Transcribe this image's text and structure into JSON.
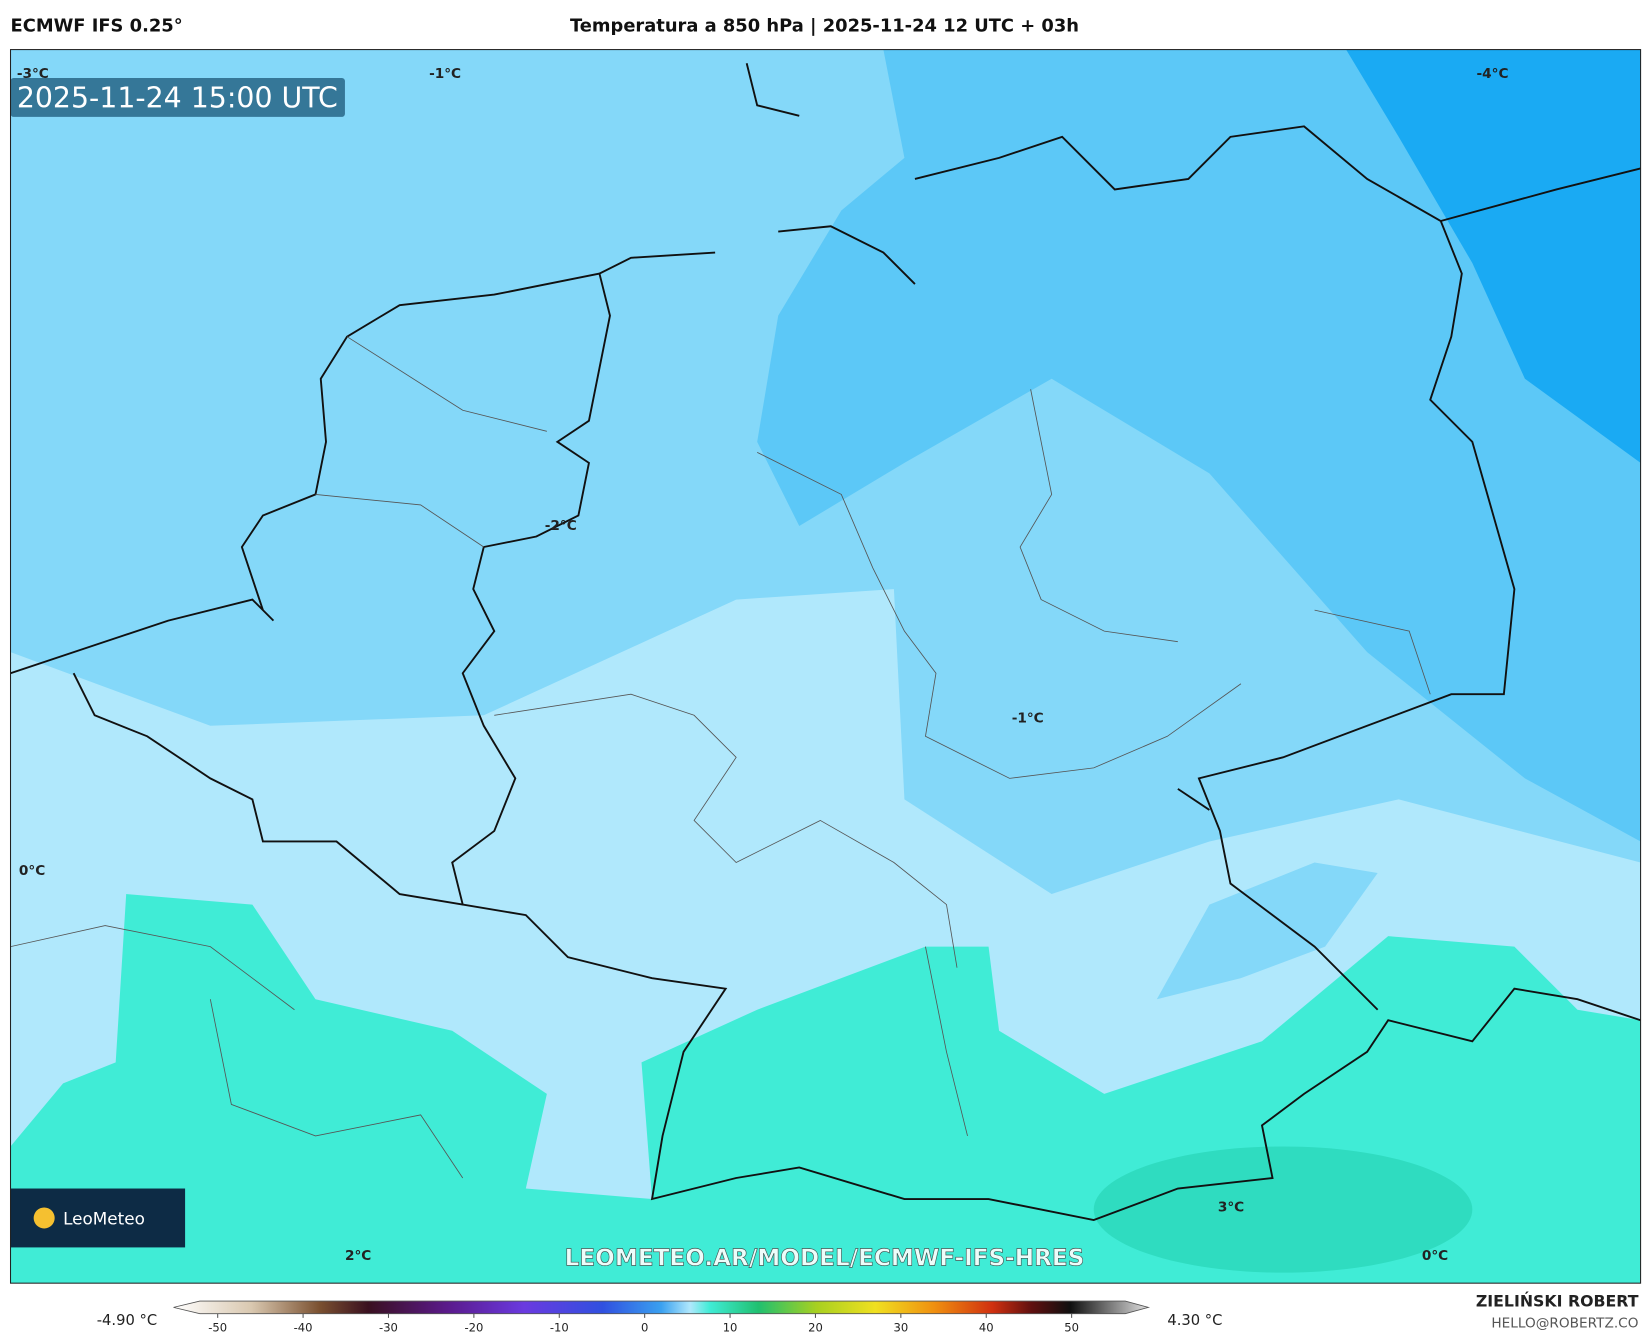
{
  "header": {
    "model": "ECMWF IFS 0.25°",
    "title": "Temperatura a 850 hPa | 2025-11-24 12 UTC + 03h"
  },
  "map": {
    "timestamp": "2025-11-24 15:00 UTC",
    "isotherm_labels": [
      "-3°C",
      "-1°C",
      "-4°C",
      "-2°C",
      "-1°C",
      "0°C",
      "3°C",
      "2°C",
      "0°C"
    ],
    "watermark": "LEOMETEO.AR/MODEL/ECMWF-IFS-HRES",
    "logo": "LeoMeteo"
  },
  "colorbar": {
    "min_label": "-4.90 °C",
    "max_label": "4.30 °C",
    "ticks": [
      -50,
      -40,
      -30,
      -20,
      -10,
      0,
      10,
      20,
      30,
      40,
      50
    ]
  },
  "footer": {
    "author": "ZIELIŃSKI ROBERT",
    "email": "HELLO@ROBERTZ.CO"
  }
}
